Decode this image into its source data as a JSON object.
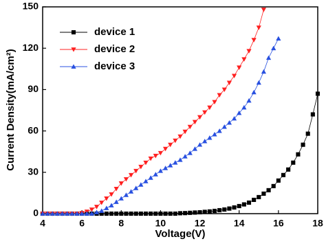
{
  "chart_data": {
    "type": "line",
    "x_label": "Voltage(V)",
    "y_label": "Current Density(mA/cm²)",
    "x": [
      4,
      4.25,
      4.5,
      4.75,
      5,
      5.25,
      5.5,
      5.75,
      6,
      6.25,
      6.5,
      6.75,
      7,
      7.25,
      7.5,
      7.75,
      8,
      8.25,
      8.5,
      8.75,
      9,
      9.25,
      9.5,
      9.75,
      10,
      10.25,
      10.5,
      10.75,
      11,
      11.25,
      11.5,
      11.75,
      12,
      12.25,
      12.5,
      12.75,
      13,
      13.25,
      13.5,
      13.75,
      14,
      14.25,
      14.5,
      14.75,
      15,
      15.25,
      15.5,
      15.75,
      16,
      16.25,
      16.5,
      16.75,
      17,
      17.25,
      17.5,
      17.75,
      18
    ],
    "series": [
      {
        "name": "device 1",
        "color": "#000000",
        "marker": "square",
        "values": [
          0,
          0,
          0,
          0,
          0,
          0,
          0,
          0,
          0,
          0,
          0,
          0,
          0,
          0,
          0,
          0,
          0,
          0,
          0,
          0,
          0,
          0,
          0,
          0,
          0,
          0,
          0,
          0,
          0.3,
          0.4,
          0.6,
          0.8,
          1,
          1.3,
          1.6,
          2,
          2.5,
          3,
          3.7,
          4.5,
          5.5,
          6.7,
          8,
          10,
          12,
          14.5,
          17,
          20,
          24,
          28,
          32,
          37,
          43,
          50,
          58,
          72,
          87
        ]
      },
      {
        "name": "device 2",
        "color": "#ff2020",
        "marker": "triangle-down",
        "values": [
          0,
          0,
          0,
          0,
          0,
          0,
          0,
          0,
          0.5,
          1.5,
          3,
          5,
          8,
          11,
          14,
          18,
          22,
          25,
          28,
          31,
          34,
          37,
          40,
          42,
          44,
          47,
          50,
          53,
          56,
          59.5,
          63,
          66.5,
          70,
          73.5,
          77,
          81,
          86,
          90,
          95,
          100,
          106,
          112,
          118,
          126,
          135,
          148,
          null,
          null,
          null,
          null,
          null,
          null,
          null,
          null,
          null,
          null,
          null
        ]
      },
      {
        "name": "device 3",
        "color": "#2850e0",
        "marker": "triangle-up",
        "values": [
          0,
          0,
          0,
          0,
          0,
          0,
          0,
          0,
          0,
          0,
          0,
          1,
          2,
          4,
          6,
          8.5,
          11,
          13.5,
          16,
          18.5,
          21,
          23.5,
          26,
          28.5,
          31,
          33,
          35,
          37,
          39,
          41.5,
          44,
          47,
          50,
          52.5,
          55,
          57.5,
          60,
          63,
          66,
          69,
          73,
          77,
          82,
          88,
          95,
          103,
          113,
          120,
          127,
          null,
          null,
          null,
          null,
          null,
          null,
          null,
          null
        ]
      }
    ],
    "xlim": [
      4,
      18
    ],
    "xticks": [
      4,
      6,
      8,
      10,
      12,
      14,
      16,
      18
    ],
    "ylim": [
      0,
      150
    ],
    "yticks": [
      0,
      30,
      60,
      90,
      120,
      150
    ],
    "legend": "upper-left"
  }
}
